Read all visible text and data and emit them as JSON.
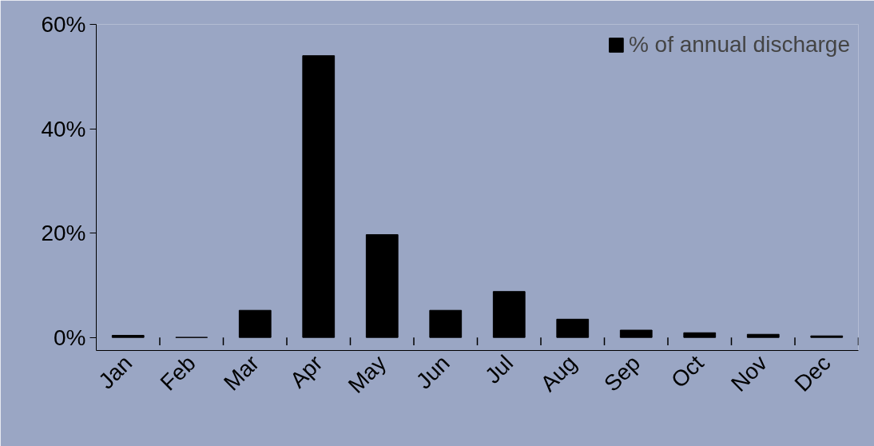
{
  "chart_data": {
    "type": "bar",
    "categories": [
      "Jan",
      "Feb",
      "Mar",
      "Apr",
      "May",
      "Jun",
      "Jul",
      "Aug",
      "Sep",
      "Oct",
      "Nov",
      "Dec"
    ],
    "series": [
      {
        "name": "% of annual discharge",
        "color": "#000000",
        "values": [
          0.4,
          0,
          5.2,
          54,
          19.7,
          5.2,
          8.8,
          3.5,
          1.4,
          0.9,
          0.6,
          0.3
        ]
      }
    ],
    "ylim": [
      0,
      60
    ],
    "yticks": [
      {
        "value": 0,
        "label": "0%"
      },
      {
        "value": 20,
        "label": "20%"
      },
      {
        "value": 40,
        "label": "40%"
      },
      {
        "value": 60,
        "label": "60%"
      }
    ],
    "grid": false,
    "legend": "top right"
  }
}
